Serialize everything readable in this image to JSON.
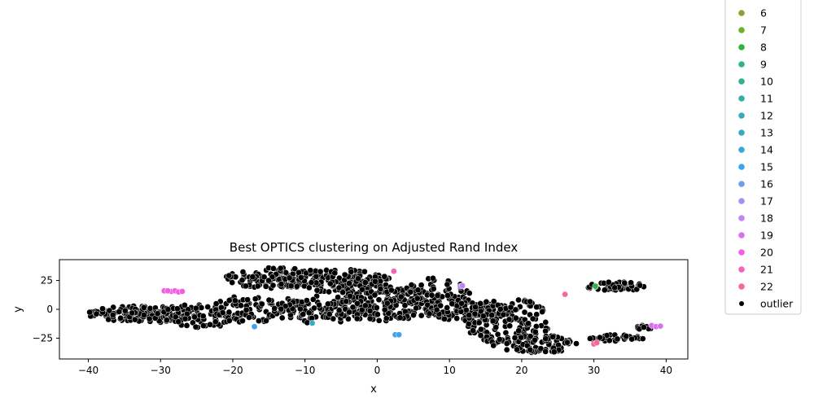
{
  "chart_data": {
    "type": "scatter",
    "title": "Best OPTICS clustering on Adjusted Rand Index",
    "xlabel": "x",
    "ylabel": "y",
    "xlim": [
      -44,
      43
    ],
    "ylim": [
      -43,
      43
    ],
    "xticks": [
      -40,
      -30,
      -20,
      -10,
      0,
      10,
      20,
      30,
      40
    ],
    "xtick_labels": [
      "−40",
      "−30",
      "−20",
      "−10",
      "0",
      "10",
      "20",
      "30",
      "40"
    ],
    "yticks": [
      -25,
      0,
      25
    ],
    "ytick_labels": [
      "−25",
      "0",
      "25"
    ],
    "grid": false,
    "legend_position": "right-outside",
    "legend": [
      {
        "label": "6",
        "color": "#8aa52f"
      },
      {
        "label": "7",
        "color": "#6db02f"
      },
      {
        "label": "8",
        "color": "#32b13f"
      },
      {
        "label": "9",
        "color": "#31b57c"
      },
      {
        "label": "10",
        "color": "#32b294"
      },
      {
        "label": "11",
        "color": "#33b0a6"
      },
      {
        "label": "12",
        "color": "#34aeb4"
      },
      {
        "label": "13",
        "color": "#36acc4"
      },
      {
        "label": "14",
        "color": "#38a9d7"
      },
      {
        "label": "15",
        "color": "#3ea3ec"
      },
      {
        "label": "16",
        "color": "#6b9ff0"
      },
      {
        "label": "17",
        "color": "#9a95f1"
      },
      {
        "label": "18",
        "color": "#bd86f1"
      },
      {
        "label": "19",
        "color": "#dc6ff0"
      },
      {
        "label": "20",
        "color": "#f35ee2"
      },
      {
        "label": "21",
        "color": "#f564b9"
      },
      {
        "label": "22",
        "color": "#f56a92"
      },
      {
        "label": "outlier",
        "color": "#000000"
      }
    ],
    "outlier_regions": [
      {
        "cx": -33,
        "cy": -4,
        "rx": 7,
        "ry": 7,
        "n": 130
      },
      {
        "cx": -25,
        "cy": -6,
        "rx": 6,
        "ry": 10,
        "n": 110
      },
      {
        "cx": -18,
        "cy": 0,
        "rx": 5,
        "ry": 12,
        "n": 70
      },
      {
        "cx": -14,
        "cy": 27,
        "rx": 7,
        "ry": 9,
        "n": 110
      },
      {
        "cx": -6,
        "cy": 25,
        "rx": 8,
        "ry": 10,
        "n": 150
      },
      {
        "cx": -8,
        "cy": 0,
        "rx": 7,
        "ry": 12,
        "n": 130
      },
      {
        "cx": 1,
        "cy": 5,
        "rx": 8,
        "ry": 15,
        "n": 170
      },
      {
        "cx": 8,
        "cy": 10,
        "rx": 5,
        "ry": 18,
        "n": 90
      },
      {
        "cx": 13,
        "cy": -2,
        "rx": 6,
        "ry": 8,
        "n": 90
      },
      {
        "cx": 18,
        "cy": -10,
        "rx": 6,
        "ry": 20,
        "n": 150
      },
      {
        "cx": 22,
        "cy": -30,
        "rx": 6,
        "ry": 8,
        "n": 90
      },
      {
        "cx": 33,
        "cy": 20,
        "rx": 4,
        "ry": 4,
        "n": 50
      },
      {
        "cx": 33,
        "cy": -25,
        "rx": 4,
        "ry": 3,
        "n": 35
      },
      {
        "cx": 37,
        "cy": -16,
        "rx": 1.5,
        "ry": 2,
        "n": 10
      }
    ],
    "clusters": [
      {
        "label": "20",
        "color": "#f35ee2",
        "x": [
          -29.5,
          -28.5,
          -28.0,
          -27.5,
          -27.0,
          -29.0
        ],
        "y": [
          16,
          15.5,
          16,
          15,
          15.5,
          16
        ]
      },
      {
        "label": "21",
        "color": "#f564b9",
        "x": [
          2.3
        ],
        "y": [
          33
        ]
      },
      {
        "label": "22",
        "color": "#f56a92",
        "x": [
          26.0
        ],
        "y": [
          13
        ]
      },
      {
        "label": "18",
        "color": "#bd86f1",
        "x": [
          11.5,
          11.8
        ],
        "y": [
          20,
          20.5
        ]
      },
      {
        "label": "8",
        "color": "#32b13f",
        "x": [
          30.2
        ],
        "y": [
          20
        ]
      },
      {
        "label": "15",
        "color": "#3ea3ec",
        "x": [
          -17.0,
          2.5,
          3.0
        ],
        "y": [
          -15,
          -22,
          -22
        ]
      },
      {
        "label": "13",
        "color": "#36acc4",
        "x": [
          -9.0
        ],
        "y": [
          -12
        ]
      },
      {
        "label": "19",
        "color": "#dc6ff0",
        "x": [
          38.0,
          38.6,
          39.2
        ],
        "y": [
          -14,
          -15,
          -14.5
        ]
      },
      {
        "label": "22",
        "color": "#f56a92",
        "x": [
          30.0,
          30.4
        ],
        "y": [
          -30,
          -29
        ]
      }
    ]
  }
}
